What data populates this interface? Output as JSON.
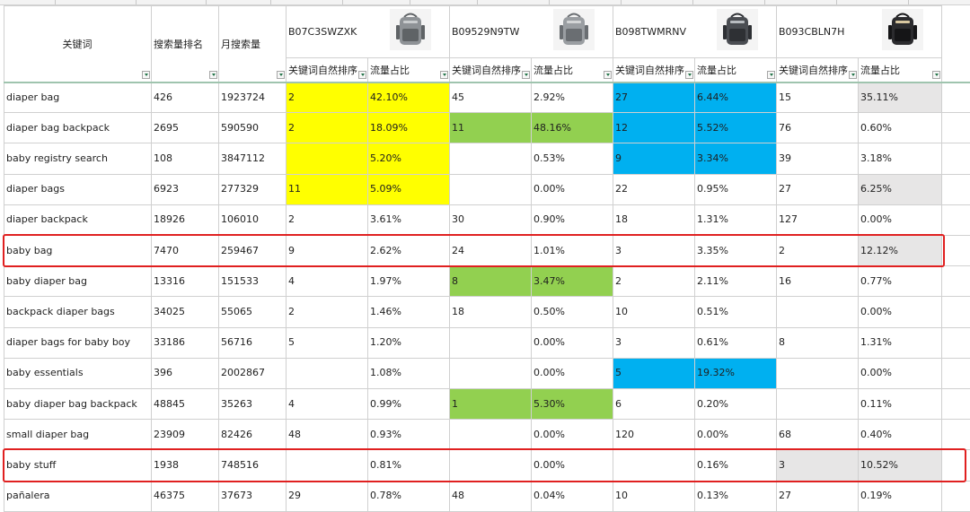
{
  "header": {
    "keyword": "关键词",
    "search_rank": "搜索量排名",
    "monthly_search": "月搜索量",
    "asins": [
      "B07C3SWZXK",
      "B09529N9TW",
      "B098TWMRNV",
      "B093CBLN7H"
    ],
    "sub_rank": "关键词自然排序",
    "sub_share": "流量占比"
  },
  "colors": {
    "yellow": "#ffff00",
    "green": "#92d050",
    "blue": "#00b0f0",
    "gray": "#e7e6e6",
    "highlight_border": "#e02020"
  },
  "highlighted_rows": [
    "baby bag",
    "baby stuff"
  ],
  "rows": [
    {
      "kw": "diaper bag",
      "rank": "426",
      "monthly": "1923724",
      "a1r": "2",
      "a1s": "42.10%",
      "a2r": "45",
      "a2s": "2.92%",
      "a3r": "27",
      "a3s": "6.44%",
      "a4r": "15",
      "a4s": "35.11%",
      "fill": {
        "a1r": "yellow",
        "a1s": "yellow",
        "a3r": "blue",
        "a3s": "blue",
        "a4s": "gray"
      }
    },
    {
      "kw": "diaper bag backpack",
      "rank": "2695",
      "monthly": "590590",
      "a1r": "2",
      "a1s": "18.09%",
      "a2r": "11",
      "a2s": "48.16%",
      "a3r": "12",
      "a3s": "5.52%",
      "a4r": "76",
      "a4s": "0.60%",
      "fill": {
        "a1r": "yellow",
        "a1s": "yellow",
        "a2r": "green",
        "a2s": "green",
        "a3r": "blue",
        "a3s": "blue"
      }
    },
    {
      "kw": "baby registry search",
      "rank": "108",
      "monthly": "3847112",
      "a1r": "",
      "a1s": "5.20%",
      "a2r": "",
      "a2s": "0.53%",
      "a3r": "9",
      "a3s": "3.34%",
      "a4r": "39",
      "a4s": "3.18%",
      "fill": {
        "a1r": "yellow",
        "a1s": "yellow",
        "a3r": "blue",
        "a3s": "blue"
      }
    },
    {
      "kw": "diaper bags",
      "rank": "6923",
      "monthly": "277329",
      "a1r": "11",
      "a1s": "5.09%",
      "a2r": "",
      "a2s": "0.00%",
      "a3r": "22",
      "a3s": "0.95%",
      "a4r": "27",
      "a4s": "6.25%",
      "fill": {
        "a1r": "yellow",
        "a1s": "yellow",
        "a4s": "gray"
      }
    },
    {
      "kw": "diaper backpack",
      "rank": "18926",
      "monthly": "106010",
      "a1r": "2",
      "a1s": "3.61%",
      "a2r": "30",
      "a2s": "0.90%",
      "a3r": "18",
      "a3s": "1.31%",
      "a4r": "127",
      "a4s": "0.00%",
      "fill": {}
    },
    {
      "kw": "baby bag",
      "rank": "7470",
      "monthly": "259467",
      "a1r": "9",
      "a1s": "2.62%",
      "a2r": "24",
      "a2s": "1.01%",
      "a3r": "3",
      "a3s": "3.35%",
      "a4r": "2",
      "a4s": "12.12%",
      "fill": {
        "a4s": "gray"
      }
    },
    {
      "kw": "baby diaper bag",
      "rank": "13316",
      "monthly": "151533",
      "a1r": "4",
      "a1s": "1.97%",
      "a2r": "8",
      "a2s": "3.47%",
      "a3r": "2",
      "a3s": "2.11%",
      "a4r": "16",
      "a4s": "0.77%",
      "fill": {
        "a2r": "green",
        "a2s": "green"
      }
    },
    {
      "kw": "backpack diaper bags",
      "rank": "34025",
      "monthly": "55065",
      "a1r": "2",
      "a1s": "1.46%",
      "a2r": "18",
      "a2s": "0.50%",
      "a3r": "10",
      "a3s": "0.51%",
      "a4r": "",
      "a4s": "0.00%",
      "fill": {}
    },
    {
      "kw": "diaper bags for baby boy",
      "rank": "33186",
      "monthly": "56716",
      "a1r": "5",
      "a1s": "1.20%",
      "a2r": "",
      "a2s": "0.00%",
      "a3r": "3",
      "a3s": "0.61%",
      "a4r": "8",
      "a4s": "1.31%",
      "fill": {}
    },
    {
      "kw": "baby essentials",
      "rank": "396",
      "monthly": "2002867",
      "a1r": "",
      "a1s": "1.08%",
      "a2r": "",
      "a2s": "0.00%",
      "a3r": "5",
      "a3s": "19.32%",
      "a4r": "",
      "a4s": "0.00%",
      "fill": {
        "a3r": "blue",
        "a3s": "blue"
      }
    },
    {
      "kw": "baby diaper bag backpack",
      "rank": "48845",
      "monthly": "35263",
      "a1r": "4",
      "a1s": "0.99%",
      "a2r": "1",
      "a2s": "5.30%",
      "a3r": "6",
      "a3s": "0.20%",
      "a4r": "",
      "a4s": "0.11%",
      "fill": {
        "a2r": "green",
        "a2s": "green"
      }
    },
    {
      "kw": "small diaper bag",
      "rank": "23909",
      "monthly": "82426",
      "a1r": "48",
      "a1s": "0.93%",
      "a2r": "",
      "a2s": "0.00%",
      "a3r": "120",
      "a3s": "0.00%",
      "a4r": "68",
      "a4s": "0.40%",
      "fill": {}
    },
    {
      "kw": "baby stuff",
      "rank": "1938",
      "monthly": "748516",
      "a1r": "",
      "a1s": "0.81%",
      "a2r": "",
      "a2s": "0.00%",
      "a3r": "",
      "a3s": "0.16%",
      "a4r": "3",
      "a4s": "10.52%",
      "fill": {
        "a4r": "gray",
        "a4s": "gray"
      }
    },
    {
      "kw": "pañalera",
      "rank": "46375",
      "monthly": "37673",
      "a1r": "29",
      "a1s": "0.78%",
      "a2r": "48",
      "a2s": "0.04%",
      "a3r": "10",
      "a3s": "0.13%",
      "a4r": "27",
      "a4s": "0.19%",
      "fill": {}
    }
  ]
}
